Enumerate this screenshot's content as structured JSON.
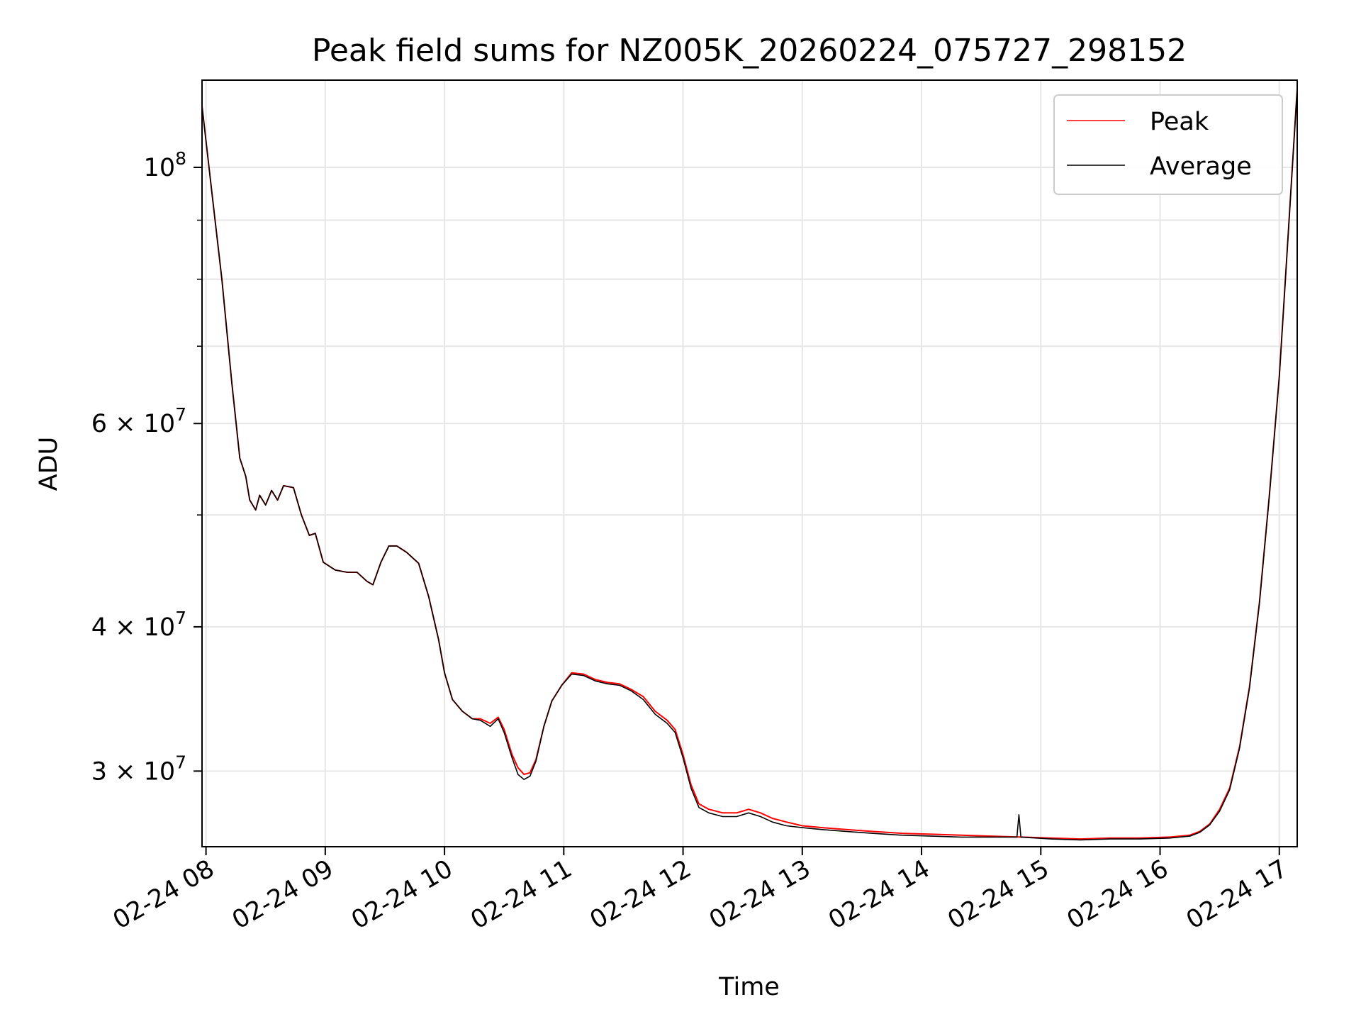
{
  "chart_data": {
    "type": "line",
    "title": "Peak field sums for NZ005K_20260224_075727_298152",
    "xlabel": "Time",
    "ylabel": "ADU",
    "y_scale": "log",
    "grid": true,
    "legend_position": "top-right",
    "xlim": [
      "2026-02-24 07:58",
      "2026-02-24 17:09"
    ],
    "ylim": [
      25800000,
      119000000
    ],
    "x_ticks": [
      {
        "value": "2026-02-24 08:00",
        "label": "02-24 08"
      },
      {
        "value": "2026-02-24 09:00",
        "label": "02-24 09"
      },
      {
        "value": "2026-02-24 10:00",
        "label": "02-24 10"
      },
      {
        "value": "2026-02-24 11:00",
        "label": "02-24 11"
      },
      {
        "value": "2026-02-24 12:00",
        "label": "02-24 12"
      },
      {
        "value": "2026-02-24 13:00",
        "label": "02-24 13"
      },
      {
        "value": "2026-02-24 14:00",
        "label": "02-24 14"
      },
      {
        "value": "2026-02-24 15:00",
        "label": "02-24 15"
      },
      {
        "value": "2026-02-24 16:00",
        "label": "02-24 16"
      },
      {
        "value": "2026-02-24 17:00",
        "label": "02-24 17"
      }
    ],
    "y_major_ticks": [
      {
        "value": 30000000,
        "mantissa": "3",
        "times": "×",
        "base": "10",
        "exponent": "7"
      },
      {
        "value": 40000000,
        "mantissa": "4",
        "times": "×",
        "base": "10",
        "exponent": "7"
      },
      {
        "value": 60000000,
        "mantissa": "6",
        "times": "×",
        "base": "10",
        "exponent": "7"
      },
      {
        "value": 100000000,
        "mantissa": "",
        "times": "",
        "base": "10",
        "exponent": "8"
      }
    ],
    "y_minor_ticks": [
      50000000,
      70000000,
      80000000,
      90000000
    ],
    "series": [
      {
        "name": "Peak",
        "color": "#ff0000",
        "points": [
          [
            "2026-02-24 07:58",
            113000000
          ],
          [
            "2026-02-24 08:03",
            95000000
          ],
          [
            "2026-02-24 08:08",
            80000000
          ],
          [
            "2026-02-24 08:13",
            65000000
          ],
          [
            "2026-02-24 08:17",
            56000000
          ],
          [
            "2026-02-24 08:20",
            54000000
          ],
          [
            "2026-02-24 08:22",
            51500000
          ],
          [
            "2026-02-24 08:25",
            50500000
          ],
          [
            "2026-02-24 08:27",
            52000000
          ],
          [
            "2026-02-24 08:30",
            51000000
          ],
          [
            "2026-02-24 08:33",
            52500000
          ],
          [
            "2026-02-24 08:36",
            51500000
          ],
          [
            "2026-02-24 08:39",
            53000000
          ],
          [
            "2026-02-24 08:44",
            52800000
          ],
          [
            "2026-02-24 08:48",
            50000000
          ],
          [
            "2026-02-24 08:52",
            48000000
          ],
          [
            "2026-02-24 08:55",
            48200000
          ],
          [
            "2026-02-24 08:59",
            45500000
          ],
          [
            "2026-02-24 09:05",
            44800000
          ],
          [
            "2026-02-24 09:11",
            44600000
          ],
          [
            "2026-02-24 09:16",
            44600000
          ],
          [
            "2026-02-24 09:21",
            43800000
          ],
          [
            "2026-02-24 09:24",
            43500000
          ],
          [
            "2026-02-24 09:28",
            45500000
          ],
          [
            "2026-02-24 09:32",
            47000000
          ],
          [
            "2026-02-24 09:36",
            47000000
          ],
          [
            "2026-02-24 09:41",
            46400000
          ],
          [
            "2026-02-24 09:47",
            45400000
          ],
          [
            "2026-02-24 09:52",
            42500000
          ],
          [
            "2026-02-24 09:57",
            39000000
          ],
          [
            "2026-02-24 10:00",
            36500000
          ],
          [
            "2026-02-24 10:04",
            34600000
          ],
          [
            "2026-02-24 10:09",
            33800000
          ],
          [
            "2026-02-24 10:14",
            33300000
          ],
          [
            "2026-02-24 10:18",
            33300000
          ],
          [
            "2026-02-24 10:23",
            33000000
          ],
          [
            "2026-02-24 10:27",
            33400000
          ],
          [
            "2026-02-24 10:30",
            32600000
          ],
          [
            "2026-02-24 10:34",
            31000000
          ],
          [
            "2026-02-24 10:37",
            30200000
          ],
          [
            "2026-02-24 10:40",
            29800000
          ],
          [
            "2026-02-24 10:43",
            29900000
          ],
          [
            "2026-02-24 10:46",
            30700000
          ],
          [
            "2026-02-24 10:50",
            32800000
          ],
          [
            "2026-02-24 10:54",
            34500000
          ],
          [
            "2026-02-24 10:59",
            35600000
          ],
          [
            "2026-02-24 11:04",
            36500000
          ],
          [
            "2026-02-24 11:10",
            36400000
          ],
          [
            "2026-02-24 11:16",
            36000000
          ],
          [
            "2026-02-24 11:22",
            35800000
          ],
          [
            "2026-02-24 11:28",
            35700000
          ],
          [
            "2026-02-24 11:34",
            35300000
          ],
          [
            "2026-02-24 11:40",
            34800000
          ],
          [
            "2026-02-24 11:46",
            33800000
          ],
          [
            "2026-02-24 11:52",
            33200000
          ],
          [
            "2026-02-24 11:56",
            32600000
          ],
          [
            "2026-02-24 12:00",
            31000000
          ],
          [
            "2026-02-24 12:04",
            29200000
          ],
          [
            "2026-02-24 12:08",
            28100000
          ],
          [
            "2026-02-24 12:13",
            27800000
          ],
          [
            "2026-02-24 12:20",
            27600000
          ],
          [
            "2026-02-24 12:27",
            27600000
          ],
          [
            "2026-02-24 12:33",
            27800000
          ],
          [
            "2026-02-24 12:39",
            27600000
          ],
          [
            "2026-02-24 12:45",
            27300000
          ],
          [
            "2026-02-24 12:52",
            27100000
          ],
          [
            "2026-02-24 13:00",
            26900000
          ],
          [
            "2026-02-24 13:10",
            26800000
          ],
          [
            "2026-02-24 13:22",
            26700000
          ],
          [
            "2026-02-24 13:35",
            26600000
          ],
          [
            "2026-02-24 13:50",
            26500000
          ],
          [
            "2026-02-24 14:05",
            26450000
          ],
          [
            "2026-02-24 14:20",
            26400000
          ],
          [
            "2026-02-24 14:35",
            26350000
          ],
          [
            "2026-02-24 14:50",
            26300000
          ],
          [
            "2026-02-24 15:05",
            26250000
          ],
          [
            "2026-02-24 15:20",
            26200000
          ],
          [
            "2026-02-24 15:35",
            26250000
          ],
          [
            "2026-02-24 15:50",
            26250000
          ],
          [
            "2026-02-24 16:05",
            26300000
          ],
          [
            "2026-02-24 16:15",
            26400000
          ],
          [
            "2026-02-24 16:20",
            26600000
          ],
          [
            "2026-02-24 16:25",
            27000000
          ],
          [
            "2026-02-24 16:30",
            27800000
          ],
          [
            "2026-02-24 16:35",
            29000000
          ],
          [
            "2026-02-24 16:40",
            31500000
          ],
          [
            "2026-02-24 16:45",
            35500000
          ],
          [
            "2026-02-24 16:50",
            42000000
          ],
          [
            "2026-02-24 16:55",
            52000000
          ],
          [
            "2026-02-24 17:00",
            66000000
          ],
          [
            "2026-02-24 17:04",
            85000000
          ],
          [
            "2026-02-24 17:07",
            103000000
          ],
          [
            "2026-02-24 17:09",
            117000000
          ]
        ]
      },
      {
        "name": "Average",
        "color": "#000000",
        "points": [
          [
            "2026-02-24 07:58",
            113000000
          ],
          [
            "2026-02-24 08:03",
            95000000
          ],
          [
            "2026-02-24 08:08",
            80000000
          ],
          [
            "2026-02-24 08:13",
            65000000
          ],
          [
            "2026-02-24 08:17",
            56000000
          ],
          [
            "2026-02-24 08:20",
            54000000
          ],
          [
            "2026-02-24 08:22",
            51500000
          ],
          [
            "2026-02-24 08:25",
            50500000
          ],
          [
            "2026-02-24 08:27",
            52000000
          ],
          [
            "2026-02-24 08:30",
            51000000
          ],
          [
            "2026-02-24 08:33",
            52500000
          ],
          [
            "2026-02-24 08:36",
            51500000
          ],
          [
            "2026-02-24 08:39",
            53000000
          ],
          [
            "2026-02-24 08:44",
            52800000
          ],
          [
            "2026-02-24 08:48",
            50000000
          ],
          [
            "2026-02-24 08:52",
            48000000
          ],
          [
            "2026-02-24 08:55",
            48200000
          ],
          [
            "2026-02-24 08:59",
            45500000
          ],
          [
            "2026-02-24 09:05",
            44800000
          ],
          [
            "2026-02-24 09:11",
            44600000
          ],
          [
            "2026-02-24 09:16",
            44600000
          ],
          [
            "2026-02-24 09:21",
            43800000
          ],
          [
            "2026-02-24 09:24",
            43500000
          ],
          [
            "2026-02-24 09:28",
            45500000
          ],
          [
            "2026-02-24 09:32",
            47000000
          ],
          [
            "2026-02-24 09:36",
            47000000
          ],
          [
            "2026-02-24 09:41",
            46400000
          ],
          [
            "2026-02-24 09:47",
            45400000
          ],
          [
            "2026-02-24 09:52",
            42500000
          ],
          [
            "2026-02-24 09:57",
            39000000
          ],
          [
            "2026-02-24 10:00",
            36500000
          ],
          [
            "2026-02-24 10:04",
            34600000
          ],
          [
            "2026-02-24 10:09",
            33800000
          ],
          [
            "2026-02-24 10:14",
            33300000
          ],
          [
            "2026-02-24 10:18",
            33200000
          ],
          [
            "2026-02-24 10:23",
            32800000
          ],
          [
            "2026-02-24 10:27",
            33300000
          ],
          [
            "2026-02-24 10:30",
            32400000
          ],
          [
            "2026-02-24 10:34",
            30800000
          ],
          [
            "2026-02-24 10:37",
            29800000
          ],
          [
            "2026-02-24 10:40",
            29500000
          ],
          [
            "2026-02-24 10:43",
            29700000
          ],
          [
            "2026-02-24 10:46",
            30600000
          ],
          [
            "2026-02-24 10:50",
            32800000
          ],
          [
            "2026-02-24 10:54",
            34500000
          ],
          [
            "2026-02-24 10:59",
            35600000
          ],
          [
            "2026-02-24 11:04",
            36400000
          ],
          [
            "2026-02-24 11:10",
            36300000
          ],
          [
            "2026-02-24 11:16",
            35900000
          ],
          [
            "2026-02-24 11:22",
            35700000
          ],
          [
            "2026-02-24 11:28",
            35600000
          ],
          [
            "2026-02-24 11:34",
            35200000
          ],
          [
            "2026-02-24 11:40",
            34600000
          ],
          [
            "2026-02-24 11:46",
            33600000
          ],
          [
            "2026-02-24 11:52",
            33000000
          ],
          [
            "2026-02-24 11:56",
            32400000
          ],
          [
            "2026-02-24 12:00",
            30800000
          ],
          [
            "2026-02-24 12:04",
            29000000
          ],
          [
            "2026-02-24 12:08",
            27900000
          ],
          [
            "2026-02-24 12:13",
            27600000
          ],
          [
            "2026-02-24 12:20",
            27400000
          ],
          [
            "2026-02-24 12:27",
            27400000
          ],
          [
            "2026-02-24 12:33",
            27600000
          ],
          [
            "2026-02-24 12:39",
            27400000
          ],
          [
            "2026-02-24 12:45",
            27100000
          ],
          [
            "2026-02-24 12:52",
            26900000
          ],
          [
            "2026-02-24 13:00",
            26800000
          ],
          [
            "2026-02-24 13:10",
            26700000
          ],
          [
            "2026-02-24 13:22",
            26600000
          ],
          [
            "2026-02-24 13:35",
            26500000
          ],
          [
            "2026-02-24 13:50",
            26400000
          ],
          [
            "2026-02-24 14:05",
            26350000
          ],
          [
            "2026-02-24 14:20",
            26300000
          ],
          [
            "2026-02-24 14:35",
            26300000
          ],
          [
            "2026-02-24 14:48",
            26300000
          ],
          [
            "2026-02-24 14:49",
            27500000
          ],
          [
            "2026-02-24 14:50",
            26300000
          ],
          [
            "2026-02-24 15:05",
            26200000
          ],
          [
            "2026-02-24 15:20",
            26150000
          ],
          [
            "2026-02-24 15:35",
            26200000
          ],
          [
            "2026-02-24 15:50",
            26200000
          ],
          [
            "2026-02-24 16:05",
            26250000
          ],
          [
            "2026-02-24 16:15",
            26350000
          ],
          [
            "2026-02-24 16:20",
            26550000
          ],
          [
            "2026-02-24 16:25",
            26950000
          ],
          [
            "2026-02-24 16:30",
            27700000
          ],
          [
            "2026-02-24 16:35",
            28900000
          ],
          [
            "2026-02-24 16:40",
            31400000
          ],
          [
            "2026-02-24 16:45",
            35400000
          ],
          [
            "2026-02-24 16:50",
            41900000
          ],
          [
            "2026-02-24 16:55",
            51900000
          ],
          [
            "2026-02-24 17:00",
            65900000
          ],
          [
            "2026-02-24 17:04",
            84900000
          ],
          [
            "2026-02-24 17:07",
            102900000
          ],
          [
            "2026-02-24 17:09",
            117000000
          ]
        ]
      }
    ]
  }
}
